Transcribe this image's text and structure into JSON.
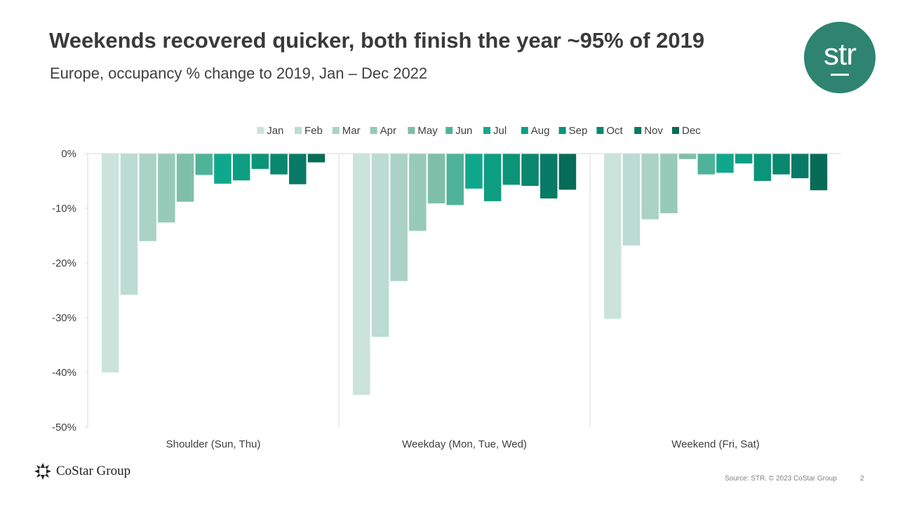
{
  "slide": {
    "title": "Weekends recovered quicker, both finish the year ~95% of 2019",
    "subtitle": "Europe, occupancy % change to 2019, Jan – Dec 2022",
    "logo_text": "str",
    "brand_text": "CoStar Group",
    "source": "Source: STR. © 2023 CoStar Group",
    "page_number": "2"
  },
  "chart_data": {
    "type": "bar",
    "title": "",
    "xlabel": "",
    "ylabel": "",
    "categories": [
      "Shoulder (Sun, Thu)",
      "Weekday (Mon, Tue, Wed)",
      "Weekend (Fri, Sat)"
    ],
    "ylim": [
      -50,
      0
    ],
    "yticks": [
      0,
      -10,
      -20,
      -30,
      -40,
      -50
    ],
    "ytick_labels": [
      "0%",
      "-10%",
      "-20%",
      "-30%",
      "-40%",
      "-50%"
    ],
    "legend_position": "top",
    "grid": false,
    "series": [
      {
        "name": "Jan",
        "color": "#cce3dc",
        "values": [
          -40.0,
          -44.1,
          -30.2
        ]
      },
      {
        "name": "Feb",
        "color": "#bcdbd2",
        "values": [
          -25.8,
          -33.5,
          -16.8
        ]
      },
      {
        "name": "Mar",
        "color": "#aad3c6",
        "values": [
          -16.0,
          -23.3,
          -12.0
        ]
      },
      {
        "name": "Apr",
        "color": "#98cab9",
        "values": [
          -12.6,
          -14.1,
          -10.9
        ]
      },
      {
        "name": "May",
        "color": "#7fbfa9",
        "values": [
          -8.8,
          -9.1,
          -1.0
        ]
      },
      {
        "name": "Jun",
        "color": "#4fb399",
        "values": [
          -3.9,
          -9.4,
          -3.8
        ]
      },
      {
        "name": "Jul",
        "color": "#10a88c",
        "values": [
          -5.5,
          -6.4,
          -3.5
        ]
      },
      {
        "name": "Aug",
        "color": "#0e9e82",
        "values": [
          -4.9,
          -8.7,
          -1.8
        ]
      },
      {
        "name": "Sep",
        "color": "#0b9479",
        "values": [
          -2.8,
          -5.7,
          -5.0
        ]
      },
      {
        "name": "Oct",
        "color": "#09876f",
        "values": [
          -3.8,
          -5.9,
          -3.8
        ]
      },
      {
        "name": "Nov",
        "color": "#087a65",
        "values": [
          -5.6,
          -8.2,
          -4.5
        ]
      },
      {
        "name": "Dec",
        "color": "#066b57",
        "values": [
          -1.6,
          -6.6,
          -6.7
        ]
      }
    ]
  }
}
